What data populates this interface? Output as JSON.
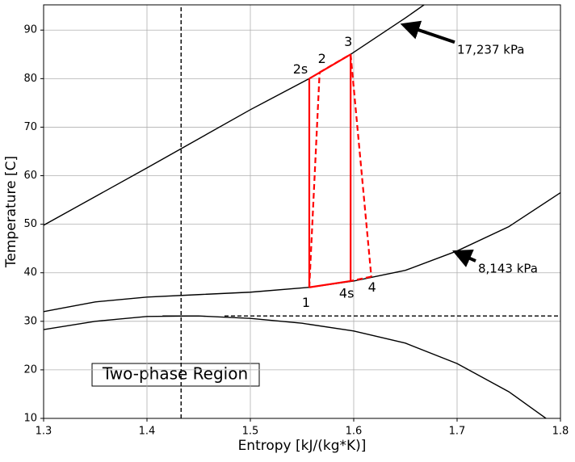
{
  "chart_data": {
    "type": "line",
    "x_label": "Entropy [kJ/(kg*K)]",
    "y_label": "Temperature [C]",
    "xlim": [
      1.3,
      1.8
    ],
    "ylim": [
      10,
      95.2
    ],
    "xticks": [
      1.3,
      1.4,
      1.5,
      1.6,
      1.7,
      1.8
    ],
    "yticks": [
      10,
      20,
      30,
      40,
      50,
      60,
      70,
      80,
      90
    ],
    "grid": true,
    "series": [
      {
        "color": "#000000",
        "dash": false,
        "x": [
          1.3,
          1.35,
          1.4,
          1.45,
          1.5,
          1.557,
          1.597,
          1.65,
          1.668
        ],
        "values": [
          49.8,
          55.7,
          61.6,
          67.6,
          73.6,
          80,
          85,
          92.5,
          95.2
        ]
      },
      {
        "color": "#000000",
        "dash": false,
        "x": [
          1.3,
          1.35,
          1.4,
          1.45,
          1.5,
          1.557,
          1.6,
          1.65,
          1.7,
          1.75,
          1.8
        ],
        "values": [
          32,
          34,
          35,
          35.5,
          36,
          37,
          38.3,
          40.5,
          44.5,
          49.5,
          56.5
        ]
      },
      {
        "color": "#000000",
        "dash": false,
        "x": [
          1.3,
          1.35,
          1.4,
          1.45,
          1.5,
          1.55,
          1.6,
          1.65,
          1.7,
          1.75,
          1.786
        ],
        "values": [
          28.3,
          30,
          31,
          31.1,
          30.6,
          29.6,
          28,
          25.5,
          21.3,
          15.5,
          10
        ]
      },
      {
        "color": "#000000",
        "dash": true,
        "x": [
          1.433,
          1.433
        ],
        "values": [
          10,
          95.2
        ]
      },
      {
        "color": "#000000",
        "dash": true,
        "x": [
          1.475,
          1.8
        ],
        "values": [
          31.1,
          31.1
        ]
      },
      {
        "color": "#000000",
        "dash": false,
        "x": [
          1.415,
          1.45
        ],
        "values": [
          31.1,
          31.1
        ]
      }
    ],
    "cycle_color": "#ff0000",
    "states": [
      {
        "label": "1",
        "s": 1.557,
        "T": 37
      },
      {
        "label": "2s",
        "s": 1.557,
        "T": 80
      },
      {
        "label": "2",
        "s": 1.567,
        "T": 81.3
      },
      {
        "label": "3",
        "s": 1.597,
        "T": 85
      },
      {
        "label": "4s",
        "s": 1.597,
        "T": 38.3
      },
      {
        "label": "4",
        "s": 1.617,
        "T": 39.2
      }
    ],
    "annotations": [
      {
        "text": "17,237 kPa",
        "x": 1.65,
        "y": 91
      },
      {
        "text": "8,143 kPa",
        "x": 1.7,
        "y": 44.1
      }
    ],
    "region_label": "Two-phase Region"
  }
}
